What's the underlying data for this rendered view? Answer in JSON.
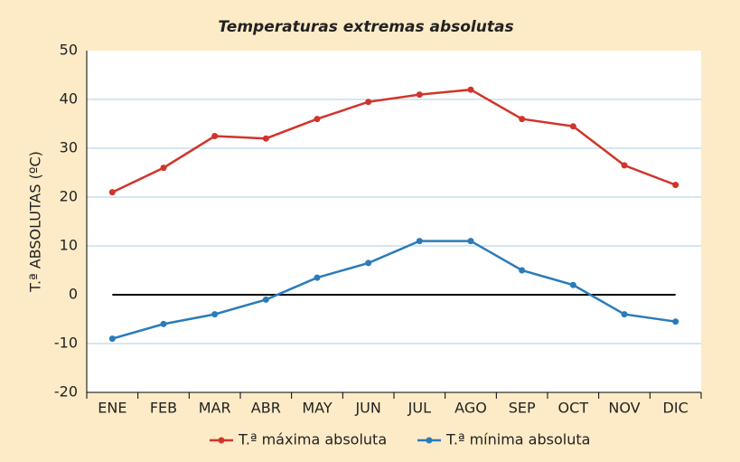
{
  "chart_data": {
    "type": "line",
    "title": "Temperaturas extremas absolutas",
    "y_label": "T.ª ABSOLUTAS (ºC)",
    "categories": [
      "ENE",
      "FEB",
      "MAR",
      "ABR",
      "MAY",
      "JUN",
      "JUL",
      "AGO",
      "SEP",
      "OCT",
      "NOV",
      "DIC"
    ],
    "series": [
      {
        "name": "T.ª máxima absoluta",
        "color": "#d1342b",
        "values": [
          21,
          26,
          32.5,
          32,
          36,
          39.5,
          41,
          42,
          36,
          34.5,
          26.5,
          22.5
        ]
      },
      {
        "name": "T.ª mínima absoluta",
        "color": "#2a7bb9",
        "values": [
          -9,
          -6,
          -4,
          -1,
          3.5,
          6.5,
          11,
          11,
          5,
          2,
          -4,
          -5.5
        ]
      }
    ],
    "ylim": [
      -20,
      50
    ],
    "yticks": [
      -20,
      -10,
      0,
      10,
      20,
      30,
      40,
      50
    ],
    "grid": true
  }
}
